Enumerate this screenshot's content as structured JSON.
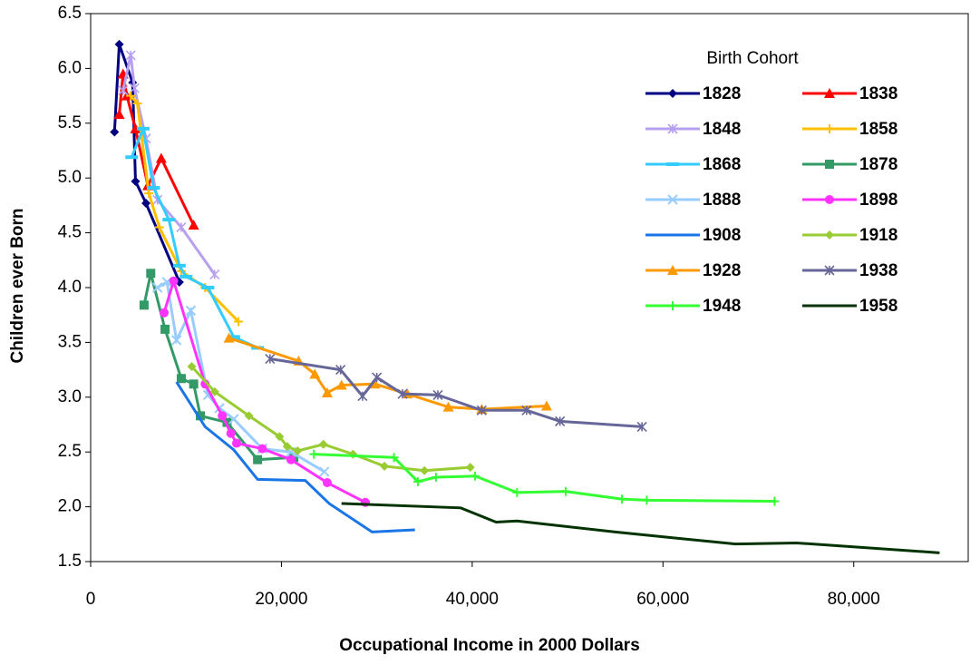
{
  "chart_data": {
    "type": "line",
    "x_label": "Occupational Income in 2000 Dollars",
    "y_label": "Children ever Born",
    "legend_title": "Birth Cohort",
    "legend": "upper right",
    "xlim": [
      0,
      92000
    ],
    "ylim": [
      1.5,
      6.5
    ],
    "xticks": [
      0,
      {
        "value": 20000,
        "label": "20,000"
      },
      {
        "value": 40000,
        "label": "40,000"
      },
      {
        "value": 60000,
        "label": "60,000"
      },
      {
        "value": 80000,
        "label": "80,000"
      }
    ],
    "yticks": [
      1.5,
      {
        "value": 2,
        "label": "2.0"
      },
      2.5,
      {
        "value": 3,
        "label": "3.0"
      },
      3.5,
      {
        "value": 4,
        "label": "4.0"
      },
      4.5,
      {
        "value": 5,
        "label": "5.0"
      },
      5.5,
      {
        "value": 6,
        "label": "6.0"
      },
      6.5
    ],
    "series": [
      {
        "name": "1828",
        "color": "#000080",
        "marker": "diamond",
        "x": [
          2500,
          3000,
          4400,
          4700,
          5800,
          9300
        ],
        "values": [
          5.42,
          6.22,
          5.87,
          4.97,
          4.77,
          4.05
        ]
      },
      {
        "name": "1838",
        "color": "#ff0000",
        "marker": "triangle",
        "x": [
          3000,
          3400,
          3800,
          4700,
          6000,
          7400,
          10800
        ],
        "values": [
          5.58,
          5.95,
          5.75,
          5.45,
          4.93,
          5.18,
          4.57
        ]
      },
      {
        "name": "1848",
        "color": "#b8a0f0",
        "marker": "star",
        "x": [
          3400,
          4200,
          4600,
          5800,
          7000,
          9500,
          13000
        ],
        "values": [
          5.8,
          6.12,
          5.82,
          5.36,
          4.8,
          4.55,
          4.12
        ]
      },
      {
        "name": "1858",
        "color": "#ffc000",
        "marker": "plus",
        "x": [
          4200,
          4900,
          6100,
          7200,
          9500,
          12000,
          15500
        ],
        "values": [
          5.75,
          5.68,
          4.86,
          4.55,
          4.15,
          4.0,
          3.69
        ]
      },
      {
        "name": "1868",
        "color": "#33ccff",
        "marker": "dash",
        "x": [
          4300,
          5500,
          6600,
          8200,
          9300,
          10000,
          12300,
          15000,
          17500
        ],
        "values": [
          5.19,
          5.45,
          4.91,
          4.62,
          4.2,
          4.1,
          4.0,
          3.55,
          3.45
        ]
      },
      {
        "name": "1878",
        "color": "#339966",
        "marker": "square",
        "x": [
          5600,
          6300,
          7800,
          9500,
          10800,
          11500,
          14300,
          17500,
          21300
        ],
        "values": [
          3.84,
          4.13,
          3.62,
          3.17,
          3.12,
          2.83,
          2.77,
          2.43,
          2.45
        ]
      },
      {
        "name": "1888",
        "color": "#99ccff",
        "marker": "x",
        "x": [
          7000,
          8000,
          9000,
          10500,
          12300,
          13500,
          15000,
          18000,
          21000,
          24500
        ],
        "values": [
          4.0,
          4.05,
          3.52,
          3.79,
          3.02,
          2.9,
          2.8,
          2.53,
          2.5,
          2.32
        ]
      },
      {
        "name": "1898",
        "color": "#ff33ff",
        "marker": "circle",
        "x": [
          7700,
          8700,
          12000,
          13800,
          14700,
          15300,
          18000,
          21000,
          24800,
          28800
        ],
        "values": [
          3.77,
          4.06,
          3.12,
          2.83,
          2.67,
          2.58,
          2.53,
          2.43,
          2.22,
          2.04
        ]
      },
      {
        "name": "1908",
        "color": "#1a75e6",
        "marker": "none",
        "x": [
          9000,
          12000,
          15000,
          17500,
          22500,
          25000,
          29500,
          34000
        ],
        "values": [
          3.14,
          2.73,
          2.52,
          2.25,
          2.24,
          2.03,
          1.77,
          1.79
        ]
      },
      {
        "name": "1918",
        "color": "#99cc33",
        "marker": "diamond",
        "x": [
          10600,
          13000,
          16600,
          19800,
          20600,
          21700,
          24400,
          27500,
          30800,
          35000,
          39800
        ],
        "values": [
          3.28,
          3.05,
          2.83,
          2.64,
          2.55,
          2.51,
          2.57,
          2.48,
          2.37,
          2.33,
          2.36
        ]
      },
      {
        "name": "1928",
        "color": "#ff9900",
        "marker": "triangle",
        "x": [
          14500,
          21800,
          23500,
          24800,
          26300,
          29800,
          33200,
          37500,
          41000,
          47800
        ],
        "values": [
          3.54,
          3.33,
          3.21,
          3.04,
          3.11,
          3.12,
          3.03,
          2.91,
          2.89,
          2.92
        ]
      },
      {
        "name": "1938",
        "color": "#666699",
        "marker": "star",
        "x": [
          18800,
          26200,
          28500,
          30000,
          32700,
          36400,
          41000,
          45700,
          49200,
          57800
        ],
        "values": [
          3.35,
          3.25,
          3.01,
          3.18,
          3.03,
          3.02,
          2.88,
          2.88,
          2.78,
          2.73
        ]
      },
      {
        "name": "1948",
        "color": "#33ff33",
        "marker": "plus",
        "x": [
          23400,
          31800,
          34300,
          36200,
          40300,
          44700,
          49800,
          55700,
          58300,
          71700
        ],
        "values": [
          2.48,
          2.45,
          2.23,
          2.27,
          2.28,
          2.13,
          2.14,
          2.07,
          2.06,
          2.05
        ]
      },
      {
        "name": "1958",
        "color": "#003300",
        "marker": "none",
        "x": [
          26300,
          38800,
          42500,
          44700,
          55000,
          67600,
          74000,
          89000
        ],
        "values": [
          2.03,
          1.99,
          1.86,
          1.87,
          1.77,
          1.66,
          1.67,
          1.58
        ]
      }
    ]
  }
}
